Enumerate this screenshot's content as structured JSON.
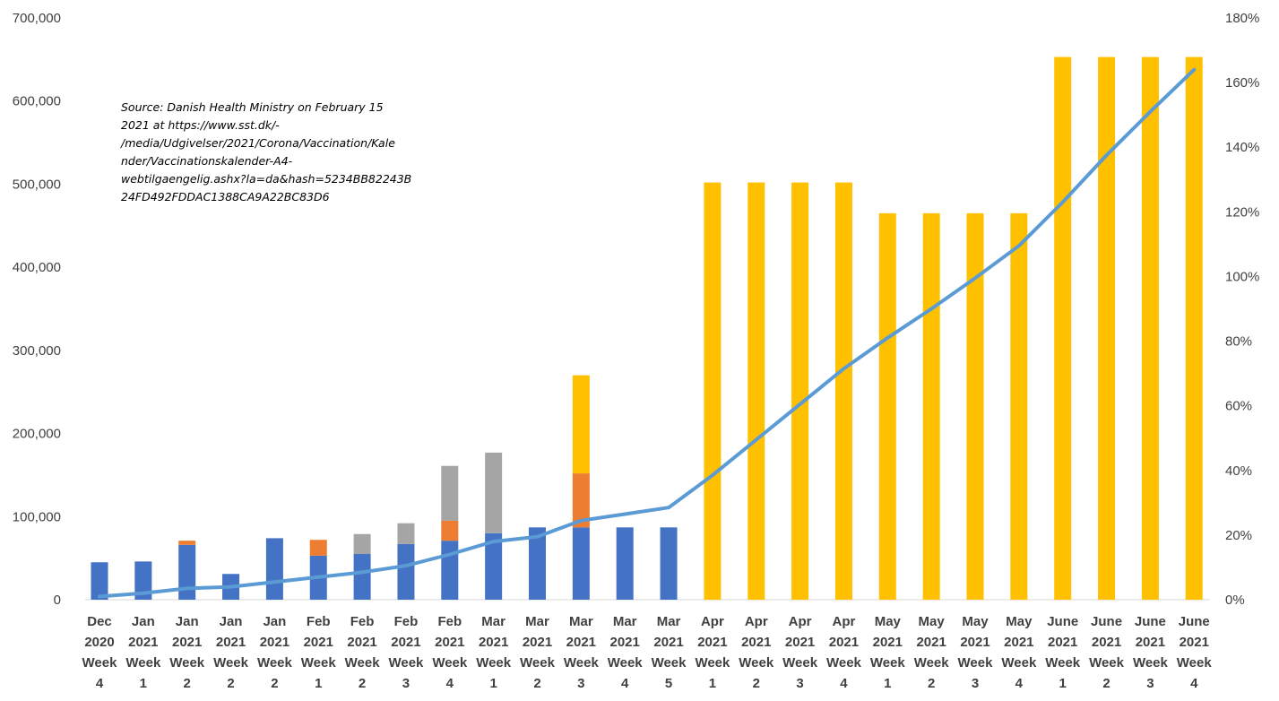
{
  "chart_data": {
    "type": "bar",
    "stacked": true,
    "title": "",
    "annotation": [
      "Source: Danish Health Ministry on February 15",
      "2021 at https://www.sst.dk/-",
      "/media/Udgivelser/2021/Corona/Vaccination/Kale",
      "nder/Vaccinationskalender-A4-",
      "webtilgaengelig.ashx?la=da&hash=5234BB82243B",
      "24FD492FDDAC1388CA9A22BC83D6"
    ],
    "categories": [
      [
        "Dec",
        "2020",
        "Week",
        "4"
      ],
      [
        "Jan",
        "2021",
        "Week",
        "1"
      ],
      [
        "Jan",
        "2021",
        "Week",
        "2"
      ],
      [
        "Jan",
        "2021",
        "Week",
        "2"
      ],
      [
        "Jan",
        "2021",
        "Week",
        "2"
      ],
      [
        "Feb",
        "2021",
        "Week",
        "1"
      ],
      [
        "Feb",
        "2021",
        "Week",
        "2"
      ],
      [
        "Feb",
        "2021",
        "Week",
        "3"
      ],
      [
        "Feb",
        "2021",
        "Week",
        "4"
      ],
      [
        "Mar",
        "2021",
        "Week",
        "1"
      ],
      [
        "Mar",
        "2021",
        "Week",
        "2"
      ],
      [
        "Mar",
        "2021",
        "Week",
        "3"
      ],
      [
        "Mar",
        "2021",
        "Week",
        "4"
      ],
      [
        "Mar",
        "2021",
        "Week",
        "5"
      ],
      [
        "Apr",
        "2021",
        "Week",
        "1"
      ],
      [
        "Apr",
        "2021",
        "Week",
        "2"
      ],
      [
        "Apr",
        "2021",
        "Week",
        "3"
      ],
      [
        "Apr",
        "2021",
        "Week",
        "4"
      ],
      [
        "May",
        "2021",
        "Week",
        "1"
      ],
      [
        "May",
        "2021",
        "Week",
        "2"
      ],
      [
        "May",
        "2021",
        "Week",
        "3"
      ],
      [
        "May",
        "2021",
        "Week",
        "4"
      ],
      [
        "June",
        "2021",
        "Week",
        "1"
      ],
      [
        "June",
        "2021",
        "Week",
        "2"
      ],
      [
        "June",
        "2021",
        "Week",
        "3"
      ],
      [
        "June",
        "2021",
        "Week",
        "4"
      ]
    ],
    "series": [
      {
        "color": "#4472C4",
        "values": [
          45000,
          46000,
          66000,
          31000,
          74000,
          53000,
          55000,
          67000,
          71000,
          80000,
          87000,
          87000,
          87000,
          87000,
          0,
          0,
          0,
          0,
          0,
          0,
          0,
          0,
          0,
          0,
          0,
          0
        ]
      },
      {
        "color": "#ED7D31",
        "values": [
          0,
          0,
          5000,
          0,
          0,
          19000,
          0,
          0,
          24000,
          0,
          0,
          65000,
          0,
          0,
          0,
          0,
          0,
          0,
          0,
          0,
          0,
          0,
          0,
          0,
          0,
          0
        ]
      },
      {
        "color": "#A5A5A5",
        "values": [
          0,
          0,
          0,
          0,
          0,
          0,
          24000,
          25000,
          66000,
          97000,
          0,
          0,
          0,
          0,
          0,
          0,
          0,
          0,
          0,
          0,
          0,
          0,
          0,
          0,
          0,
          0
        ]
      },
      {
        "color": "#FFC000",
        "values": [
          0,
          0,
          0,
          0,
          0,
          0,
          0,
          0,
          0,
          0,
          0,
          118000,
          0,
          0,
          502000,
          502000,
          502000,
          502000,
          465000,
          465000,
          465000,
          465000,
          653000,
          653000,
          653000,
          653000
        ]
      }
    ],
    "line": {
      "color": "#5B9BD5",
      "axis": "right",
      "values": [
        0.01,
        0.02,
        0.035,
        0.04,
        0.055,
        0.07,
        0.085,
        0.105,
        0.14,
        0.18,
        0.195,
        0.245,
        0.265,
        0.285,
        0.385,
        0.495,
        0.605,
        0.715,
        0.81,
        0.9,
        0.995,
        1.095,
        1.23,
        1.375,
        1.51,
        1.64
      ]
    },
    "y_left": {
      "min": 0,
      "max": 700000,
      "ticks": [
        "0",
        "100,000",
        "200,000",
        "300,000",
        "400,000",
        "500,000",
        "600,000",
        "700,000"
      ]
    },
    "y_right": {
      "min": 0,
      "max": 1.8,
      "ticks": [
        "0%",
        "20%",
        "40%",
        "60%",
        "80%",
        "100%",
        "120%",
        "140%",
        "160%",
        "180%"
      ]
    },
    "grid": false,
    "legend": "none"
  }
}
